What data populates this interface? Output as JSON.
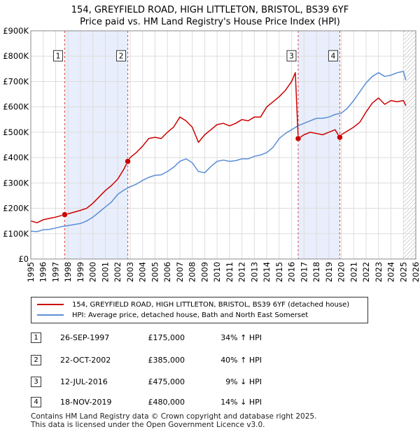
{
  "title_line1": "154, GREYFIELD ROAD, HIGH LITTLETON, BRISTOL, BS39 6YF",
  "title_line2": "Price paid vs. HM Land Registry's House Price Index (HPI)",
  "colors": {
    "property": "#cc0000",
    "hpi": "#5b8ed6",
    "shade": "#e8eefb",
    "vline": "#dd4444"
  },
  "chart_data": {
    "type": "line",
    "title": "154, GREYFIELD ROAD, HIGH LITTLETON, BRISTOL, BS39 6YF — Price paid vs. HM Land Registry's House Price Index (HPI)",
    "xlabel": "",
    "ylabel": "",
    "xlim": [
      1995,
      2026
    ],
    "ylim": [
      0,
      900000
    ],
    "ytick_labels": [
      "£0",
      "£100K",
      "£200K",
      "£300K",
      "£400K",
      "£500K",
      "£600K",
      "£700K",
      "£800K",
      "£900K"
    ],
    "ytick_values": [
      0,
      100000,
      200000,
      300000,
      400000,
      500000,
      600000,
      700000,
      800000,
      900000
    ],
    "xtick_labels": [
      "1995",
      "1996",
      "1997",
      "1998",
      "1999",
      "2000",
      "2001",
      "2002",
      "2003",
      "2004",
      "2005",
      "2006",
      "2007",
      "2008",
      "2009",
      "2010",
      "2011",
      "2012",
      "2013",
      "2014",
      "2015",
      "2016",
      "2017",
      "2018",
      "2019",
      "2020",
      "2021",
      "2022",
      "2023",
      "2024",
      "2025",
      "2026"
    ],
    "grid": true,
    "forecast_start": 2025.0,
    "series": [
      {
        "name": "154, GREYFIELD ROAD, HIGH LITTLETON, BRISTOL, BS39 6YF (detached house)",
        "x": [
          1995.0,
          1995.5,
          1996.0,
          1996.5,
          1997.0,
          1997.73,
          1998.0,
          1998.5,
          1999.0,
          1999.5,
          2000.0,
          2000.5,
          2001.0,
          2001.5,
          2002.0,
          2002.5,
          2002.81,
          2003.0,
          2003.5,
          2004.0,
          2004.5,
          2005.0,
          2005.5,
          2006.0,
          2006.5,
          2007.0,
          2007.5,
          2008.0,
          2008.5,
          2009.0,
          2009.5,
          2010.0,
          2010.5,
          2011.0,
          2011.5,
          2012.0,
          2012.5,
          2013.0,
          2013.5,
          2014.0,
          2014.5,
          2015.0,
          2015.5,
          2016.0,
          2016.3,
          2016.53,
          2016.7,
          2017.0,
          2017.5,
          2018.0,
          2018.5,
          2019.0,
          2019.5,
          2019.88,
          2020.0,
          2020.5,
          2021.0,
          2021.5,
          2022.0,
          2022.5,
          2023.0,
          2023.5,
          2024.0,
          2024.5,
          2025.0,
          2025.2
        ],
        "values": [
          150000,
          143000,
          155000,
          160000,
          165000,
          175000,
          178000,
          185000,
          192000,
          200000,
          220000,
          245000,
          270000,
          290000,
          315000,
          355000,
          385000,
          400000,
          420000,
          445000,
          475000,
          480000,
          475000,
          500000,
          520000,
          560000,
          545000,
          520000,
          460000,
          490000,
          510000,
          530000,
          535000,
          525000,
          535000,
          550000,
          545000,
          560000,
          560000,
          600000,
          620000,
          640000,
          665000,
          700000,
          735000,
          475000,
          480000,
          490000,
          500000,
          495000,
          490000,
          500000,
          510000,
          480000,
          490000,
          505000,
          520000,
          540000,
          580000,
          615000,
          635000,
          610000,
          625000,
          620000,
          625000,
          605000
        ]
      },
      {
        "name": "HPI: Average price, detached house, Bath and North East Somerset",
        "x": [
          1995.0,
          1995.5,
          1996.0,
          1996.5,
          1997.0,
          1997.5,
          1998.0,
          1998.5,
          1999.0,
          1999.5,
          2000.0,
          2000.5,
          2001.0,
          2001.5,
          2002.0,
          2002.5,
          2003.0,
          2003.5,
          2004.0,
          2004.5,
          2005.0,
          2005.5,
          2006.0,
          2006.5,
          2007.0,
          2007.5,
          2008.0,
          2008.5,
          2009.0,
          2009.5,
          2010.0,
          2010.5,
          2011.0,
          2011.5,
          2012.0,
          2012.5,
          2013.0,
          2013.5,
          2014.0,
          2014.5,
          2015.0,
          2015.5,
          2016.0,
          2016.5,
          2017.0,
          2017.5,
          2018.0,
          2018.5,
          2019.0,
          2019.5,
          2020.0,
          2020.5,
          2021.0,
          2021.5,
          2022.0,
          2022.5,
          2023.0,
          2023.5,
          2024.0,
          2024.5,
          2025.0,
          2025.2
        ],
        "values": [
          110000,
          108000,
          115000,
          117000,
          122000,
          128000,
          132000,
          136000,
          140000,
          150000,
          165000,
          185000,
          205000,
          225000,
          255000,
          272000,
          285000,
          295000,
          310000,
          322000,
          330000,
          332000,
          345000,
          362000,
          385000,
          395000,
          380000,
          345000,
          340000,
          365000,
          385000,
          390000,
          385000,
          388000,
          395000,
          395000,
          405000,
          410000,
          420000,
          440000,
          475000,
          495000,
          510000,
          525000,
          535000,
          545000,
          555000,
          555000,
          560000,
          570000,
          575000,
          595000,
          625000,
          660000,
          695000,
          720000,
          735000,
          720000,
          725000,
          735000,
          740000,
          705000
        ]
      }
    ],
    "transactions": [
      {
        "label": "1",
        "date": "26-SEP-1997",
        "x": 1997.73,
        "price_value": 175000,
        "price": "£175,000",
        "hpi": "34% ↑ HPI"
      },
      {
        "label": "2",
        "date": "22-OCT-2002",
        "x": 2002.81,
        "price_value": 385000,
        "price": "£385,000",
        "hpi": "40% ↑ HPI"
      },
      {
        "label": "3",
        "date": "12-JUL-2016",
        "x": 2016.53,
        "price_value": 475000,
        "price": "£475,000",
        "hpi": "9% ↓ HPI"
      },
      {
        "label": "4",
        "date": "18-NOV-2019",
        "x": 2019.88,
        "price_value": 480000,
        "price": "£480,000",
        "hpi": "14% ↓ HPI"
      }
    ]
  },
  "legend": {
    "property": "154, GREYFIELD ROAD, HIGH LITTLETON, BRISTOL, BS39 6YF (detached house)",
    "hpi": "HPI: Average price, detached house, Bath and North East Somerset"
  },
  "footer_line1": "Contains HM Land Registry data © Crown copyright and database right 2025.",
  "footer_line2": "This data is licensed under the Open Government Licence v3.0."
}
